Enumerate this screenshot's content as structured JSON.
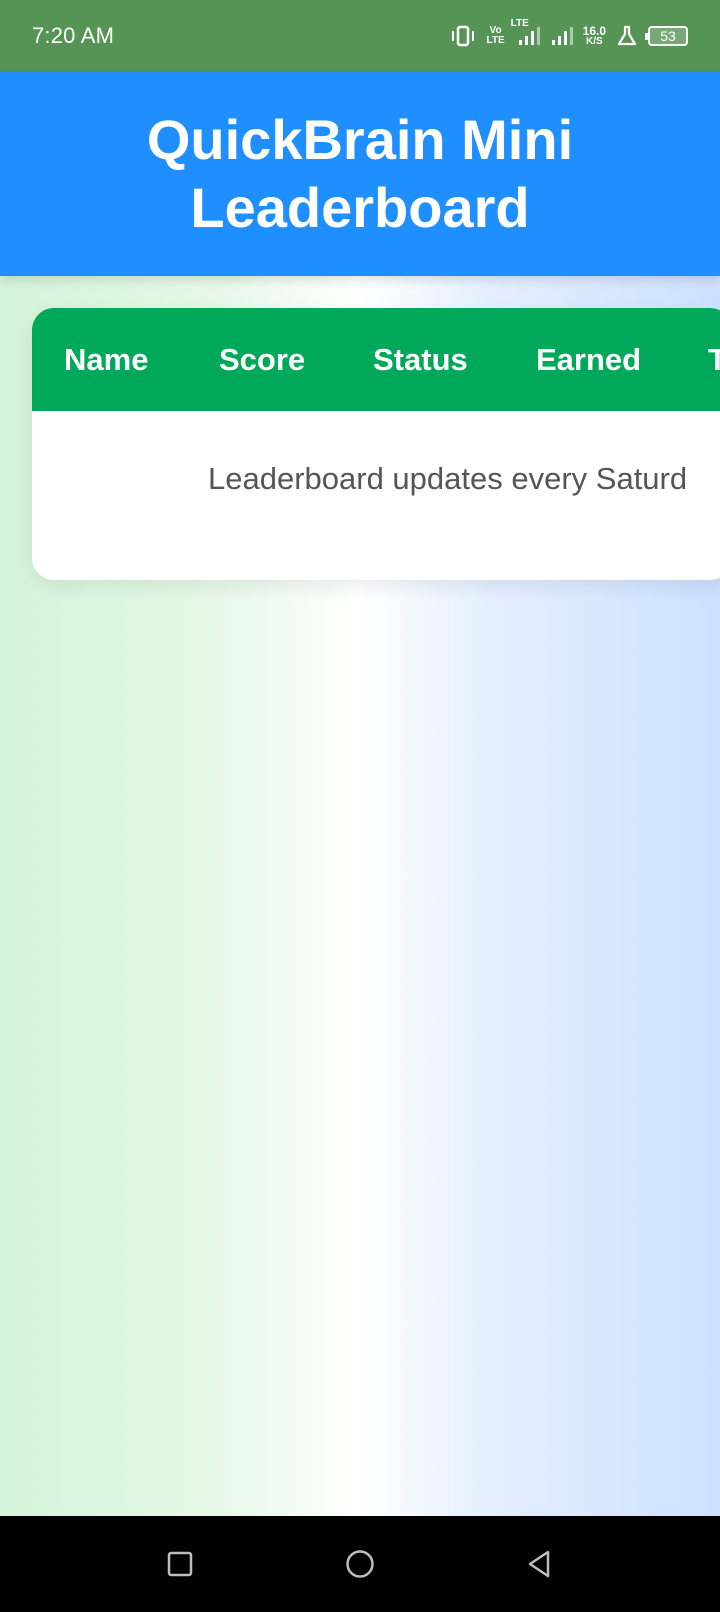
{
  "status_bar": {
    "time": "7:20 AM",
    "volte_top": "Vo",
    "volte_bottom": "LTE",
    "lte_label": "LTE",
    "speed_value": "16.0",
    "speed_unit": "K/S",
    "battery_level": "53"
  },
  "header": {
    "title": "QuickBrain Mini Leaderboard"
  },
  "leaderboard": {
    "columns": [
      "Name",
      "Score",
      "Status",
      "Earned",
      "T"
    ],
    "message": "Leaderboard updates every Saturd"
  },
  "colors": {
    "status_bar": "#559455",
    "header": "#1f8fff",
    "table_header": "#00a85a"
  },
  "icons": {
    "nav": [
      "recent-apps-icon",
      "home-icon",
      "back-icon"
    ]
  }
}
